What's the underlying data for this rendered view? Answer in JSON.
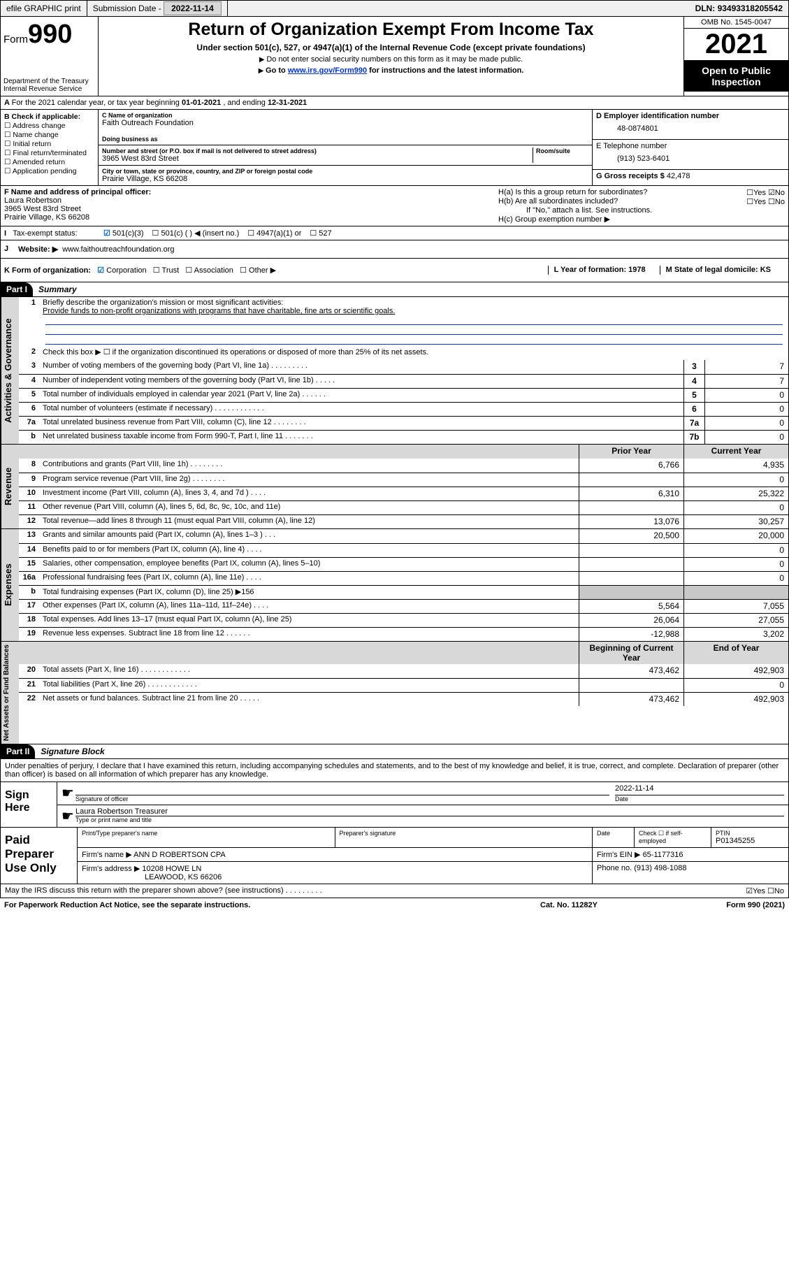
{
  "topbar": {
    "efile": "efile GRAPHIC print",
    "submission_label": "Submission Date - ",
    "submission_date": "2022-11-14",
    "dln_label": "DLN: ",
    "dln": "93493318205542"
  },
  "header": {
    "form_prefix": "Form",
    "form_num": "990",
    "dept": "Department of the Treasury\nInternal Revenue Service",
    "title": "Return of Organization Exempt From Income Tax",
    "subtitle": "Under section 501(c), 527, or 4947(a)(1) of the Internal Revenue Code (except private foundations)",
    "note1": "Do not enter social security numbers on this form as it may be made public.",
    "note2_pre": "Go to ",
    "note2_link": "www.irs.gov/Form990",
    "note2_post": " for instructions and the latest information.",
    "omb": "OMB No. 1545-0047",
    "year": "2021",
    "inspect": "Open to Public Inspection"
  },
  "row_a": {
    "text_pre": "For the 2021 calendar year, or tax year beginning ",
    "begin": "01-01-2021",
    "mid": " , and ending ",
    "end": "12-31-2021"
  },
  "col_b": {
    "label": "B Check if applicable:",
    "items": [
      "Address change",
      "Name change",
      "Initial return",
      "Final return/terminated",
      "Amended return",
      "Application pending"
    ]
  },
  "col_c": {
    "name_lbl": "C Name of organization",
    "name": "Faith Outreach Foundation",
    "dba_lbl": "Doing business as",
    "dba": "",
    "addr_lbl": "Number and street (or P.O. box if mail is not delivered to street address)",
    "room_lbl": "Room/suite",
    "addr": "3965 West 83rd Street",
    "city_lbl": "City or town, state or province, country, and ZIP or foreign postal code",
    "city": "Prairie Village, KS  66208"
  },
  "col_d": {
    "ein_lbl": "D Employer identification number",
    "ein": "48-0874801",
    "tel_lbl": "E Telephone number",
    "tel": "(913) 523-6401",
    "gross_lbl": "G Gross receipts $ ",
    "gross": "42,478"
  },
  "row_f": {
    "f_lbl": "F Name and address of principal officer:",
    "f_name": "Laura Robertson",
    "f_addr1": "3965 West 83rd Street",
    "f_addr2": "Prairie Village, KS  66208",
    "ha": "H(a)  Is this a group return for subordinates?",
    "ha_ans": "☐Yes ☑No",
    "hb": "H(b)  Are all subordinates included?",
    "hb_ans": "☐Yes ☐No",
    "hb_note": "If \"No,\" attach a list. See instructions.",
    "hc": "H(c)  Group exemption number ▶"
  },
  "row_i": {
    "lbl": "Tax-exempt status:",
    "o1": "501(c)(3)",
    "o2": "501(c) (  ) ◀ (insert no.)",
    "o3": "4947(a)(1) or",
    "o4": "527"
  },
  "row_j": {
    "lbl": "Website: ▶",
    "val": "www.faithoutreachfoundation.org"
  },
  "row_k": {
    "k_lbl": "K Form of organization:",
    "k1": "Corporation",
    "k2": "Trust",
    "k3": "Association",
    "k4": "Other ▶",
    "l": "L Year of formation: 1978",
    "m": "M State of legal domicile: KS"
  },
  "part1": {
    "hdr": "Part I",
    "title": "Summary",
    "q1": "Briefly describe the organization's mission or most significant activities:",
    "mission": "Provide funds to non-profit organizations with programs that have charitable, fine arts or scientific goals.",
    "q2": "Check this box ▶ ☐  if the organization discontinued its operations or disposed of more than 25% of its net assets."
  },
  "gov_lines": [
    {
      "n": "3",
      "t": "Number of voting members of the governing body (Part VI, line 1a)   .    .    .    .    .    .    .    .    .",
      "b": "3",
      "v": "7"
    },
    {
      "n": "4",
      "t": "Number of independent voting members of the governing body (Part VI, line 1b)   .    .    .    .    .",
      "b": "4",
      "v": "7"
    },
    {
      "n": "5",
      "t": "Total number of individuals employed in calendar year 2021 (Part V, line 2a)   .    .    .    .    .    .",
      "b": "5",
      "v": "0"
    },
    {
      "n": "6",
      "t": "Total number of volunteers (estimate if necessary)   .    .    .    .    .    .    .    .    .    .    .    .",
      "b": "6",
      "v": "0"
    },
    {
      "n": "7a",
      "t": "Total unrelated business revenue from Part VIII, column (C), line 12   .    .    .    .    .    .    .    .",
      "b": "7a",
      "v": "0"
    },
    {
      "n": "b",
      "t": "Net unrelated business taxable income from Form 990-T, Part I, line 11   .    .    .    .    .    .    .",
      "b": "7b",
      "v": "0"
    }
  ],
  "col_hdrs": {
    "prior": "Prior Year",
    "current": "Current Year",
    "begin": "Beginning of Current Year",
    "end": "End of Year"
  },
  "rev_lines": [
    {
      "n": "8",
      "t": "Contributions and grants (Part VIII, line 1h)   .    .    .    .    .    .    .    .",
      "p": "6,766",
      "c": "4,935"
    },
    {
      "n": "9",
      "t": "Program service revenue (Part VIII, line 2g)   .    .    .    .    .    .    .    .",
      "p": "",
      "c": "0"
    },
    {
      "n": "10",
      "t": "Investment income (Part VIII, column (A), lines 3, 4, and 7d )   .    .    .    .",
      "p": "6,310",
      "c": "25,322"
    },
    {
      "n": "11",
      "t": "Other revenue (Part VIII, column (A), lines 5, 6d, 8c, 9c, 10c, and 11e)",
      "p": "",
      "c": "0"
    },
    {
      "n": "12",
      "t": "Total revenue—add lines 8 through 11 (must equal Part VIII, column (A), line 12)",
      "p": "13,076",
      "c": "30,257"
    }
  ],
  "exp_lines": [
    {
      "n": "13",
      "t": "Grants and similar amounts paid (Part IX, column (A), lines 1–3 )   .    .    .",
      "p": "20,500",
      "c": "20,000"
    },
    {
      "n": "14",
      "t": "Benefits paid to or for members (Part IX, column (A), line 4)   .    .    .    .",
      "p": "",
      "c": "0"
    },
    {
      "n": "15",
      "t": "Salaries, other compensation, employee benefits (Part IX, column (A), lines 5–10)",
      "p": "",
      "c": "0"
    },
    {
      "n": "16a",
      "t": "Professional fundraising fees (Part IX, column (A), line 11e)   .    .    .    .",
      "p": "",
      "c": "0"
    },
    {
      "n": "b",
      "t": "Total fundraising expenses (Part IX, column (D), line 25) ▶156",
      "p": "grey",
      "c": "grey"
    },
    {
      "n": "17",
      "t": "Other expenses (Part IX, column (A), lines 11a–11d, 11f–24e)   .    .    .    .",
      "p": "5,564",
      "c": "7,055"
    },
    {
      "n": "18",
      "t": "Total expenses. Add lines 13–17 (must equal Part IX, column (A), line 25)",
      "p": "26,064",
      "c": "27,055"
    },
    {
      "n": "19",
      "t": "Revenue less expenses. Subtract line 18 from line 12   .    .    .    .    .    .",
      "p": "-12,988",
      "c": "3,202"
    }
  ],
  "net_lines": [
    {
      "n": "20",
      "t": "Total assets (Part X, line 16)   .    .    .    .    .    .    .    .    .    .    .    .",
      "p": "473,462",
      "c": "492,903"
    },
    {
      "n": "21",
      "t": "Total liabilities (Part X, line 26)   .    .    .    .    .    .    .    .    .    .    .    .",
      "p": "",
      "c": "0"
    },
    {
      "n": "22",
      "t": "Net assets or fund balances. Subtract line 21 from line 20   .    .    .    .    .",
      "p": "473,462",
      "c": "492,903"
    }
  ],
  "part2": {
    "hdr": "Part II",
    "title": "Signature Block",
    "decl": "Under penalties of perjury, I declare that I have examined this return, including accompanying schedules and statements, and to the best of my knowledge and belief, it is true, correct, and complete. Declaration of preparer (other than officer) is based on all information of which preparer has any knowledge."
  },
  "sign": {
    "here": "Sign Here",
    "sig_lbl": "Signature of officer",
    "date_lbl": "Date",
    "date": "2022-11-14",
    "name": "Laura Robertson Treasurer",
    "name_lbl": "Type or print name and title"
  },
  "paid": {
    "lbl": "Paid Preparer Use Only",
    "h1": "Print/Type preparer's name",
    "h2": "Preparer's signature",
    "h3": "Date",
    "h4_pre": "Check ☐ if self-employed",
    "h5": "PTIN",
    "ptin": "P01345255",
    "firm_name_lbl": "Firm's name    ▶",
    "firm_name": "ANN D ROBERTSON CPA",
    "firm_ein_lbl": "Firm's EIN ▶",
    "firm_ein": "65-1177316",
    "firm_addr_lbl": "Firm's address ▶",
    "firm_addr1": "10208 HOWE LN",
    "firm_addr2": "LEAWOOD, KS  66206",
    "phone_lbl": "Phone no. ",
    "phone": "(913) 498-1088"
  },
  "discuss": {
    "q": "May the IRS discuss this return with the preparer shown above? (see instructions)   .    .    .    .    .    .    .    .    .",
    "ans": "☑Yes  ☐No"
  },
  "footer": {
    "left": "For Paperwork Reduction Act Notice, see the separate instructions.",
    "mid": "Cat. No. 11282Y",
    "right": "Form 990 (2021)"
  },
  "side_labels": {
    "gov": "Activities & Governance",
    "rev": "Revenue",
    "exp": "Expenses",
    "net": "Net Assets or Fund Balances"
  }
}
